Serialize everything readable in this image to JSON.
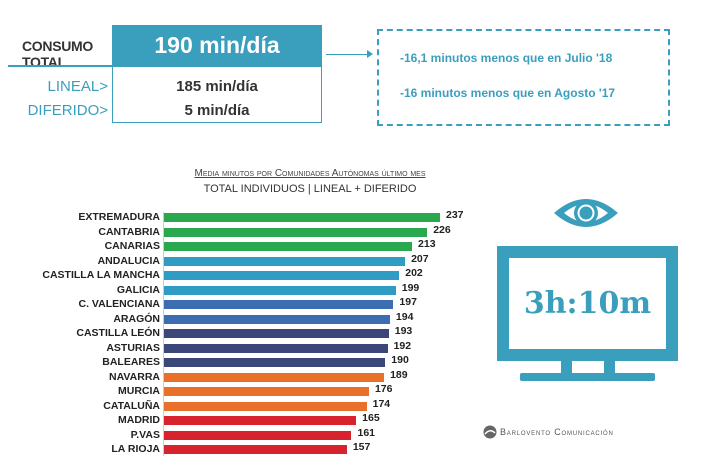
{
  "summary": {
    "consumo_label": "CONSUMO TOTAL",
    "total": "190 min/día",
    "lineal_label": "LINEAL>",
    "lineal_value": "185 min/día",
    "diferido_label": "DIFERIDO>",
    "diferido_value": "5 min/día"
  },
  "comparisons": [
    "-16,1 minutos menos que en Julio '18",
    "-16 minutos menos que en Agosto '17"
  ],
  "tv": {
    "time": "3h:10m"
  },
  "logo": {
    "text": "Barlovento Comunicación"
  },
  "colors": {
    "accent": "#3a9ebd",
    "green": "#2aa84f",
    "lightblue": "#2f9cc3",
    "blue": "#3b6db0",
    "navy": "#3b4779",
    "orange": "#e8702b",
    "red": "#d6232e"
  },
  "chart_data": {
    "type": "bar",
    "orientation": "horizontal",
    "title": "Media minutos por Comunidades Autónomas último mes",
    "subtitle": "TOTAL INDIVIDUOS  | LINEAL + DIFERIDO",
    "categories": [
      "EXTREMADURA",
      "CANTABRIA",
      "CANARIAS",
      "ANDALUCIA",
      "CASTILLA LA MANCHA",
      "GALICIA",
      "C. VALENCIANA",
      "ARAGÓN",
      "CASTILLA LEÓN",
      "ASTURIAS",
      "BALEARES",
      "NAVARRA",
      "MURCIA",
      "CATALUÑA",
      "MADRID",
      "P.VAS",
      "LA RIOJA"
    ],
    "values": [
      237,
      226,
      213,
      207,
      202,
      199,
      197,
      194,
      193,
      192,
      190,
      189,
      176,
      174,
      165,
      161,
      157
    ],
    "bar_colors": [
      "#2aa84f",
      "#2aa84f",
      "#2aa84f",
      "#2f9cc3",
      "#2f9cc3",
      "#2f9cc3",
      "#3b6db0",
      "#3b6db0",
      "#3b4779",
      "#3b4779",
      "#3b4779",
      "#e8702b",
      "#e8702b",
      "#e8702b",
      "#d6232e",
      "#d6232e",
      "#d6232e"
    ],
    "xlim": [
      0,
      237
    ]
  }
}
